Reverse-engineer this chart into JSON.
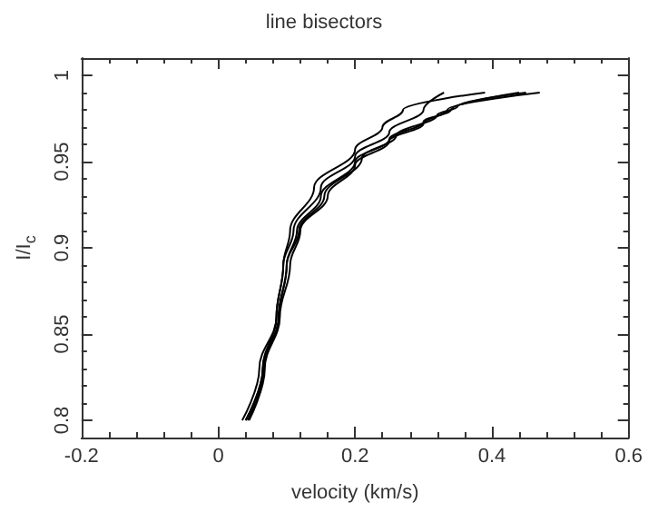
{
  "chart_data": {
    "type": "line",
    "title": "line bisectors",
    "xlabel": "velocity (km/s)",
    "ylabel": "I/I$_{c}$",
    "xlim": [
      -0.2,
      0.6
    ],
    "xticks": [
      -0.2,
      0,
      0.2,
      0.4,
      0.6
    ],
    "ylim": [
      0.79,
      1.01
    ],
    "yticks": [
      0.8,
      0.85,
      0.9,
      0.95,
      1
    ],
    "grid": false,
    "legend": false,
    "marker": "none",
    "line_style": "solid",
    "series": [
      {
        "color": "#000000",
        "x": [
          0.035,
          0.06,
          0.085,
          0.095,
          0.11,
          0.15,
          0.2,
          0.25,
          0.3,
          0.33
        ],
        "values": [
          0.8,
          0.83,
          0.86,
          0.89,
          0.91,
          0.935,
          0.953,
          0.967,
          0.98,
          0.99
        ]
      },
      {
        "color": "#000000",
        "x": [
          0.04,
          0.065,
          0.085,
          0.095,
          0.105,
          0.14,
          0.2,
          0.24,
          0.27,
          0.39
        ],
        "values": [
          0.8,
          0.83,
          0.86,
          0.89,
          0.91,
          0.935,
          0.957,
          0.97,
          0.98,
          0.99
        ]
      },
      {
        "color": "#000000",
        "x": [
          0.04,
          0.065,
          0.088,
          0.1,
          0.115,
          0.15,
          0.2,
          0.25,
          0.3,
          0.34,
          0.44
        ],
        "values": [
          0.8,
          0.83,
          0.86,
          0.89,
          0.91,
          0.93,
          0.95,
          0.963,
          0.973,
          0.98,
          0.99
        ]
      },
      {
        "color": "#000000",
        "x": [
          0.045,
          0.068,
          0.09,
          0.105,
          0.12,
          0.16,
          0.2,
          0.25,
          0.3,
          0.335,
          0.47
        ],
        "values": [
          0.8,
          0.83,
          0.86,
          0.89,
          0.91,
          0.93,
          0.948,
          0.962,
          0.972,
          0.98,
          0.99
        ]
      },
      {
        "color": "#000000",
        "x": [
          0.043,
          0.067,
          0.089,
          0.1,
          0.118,
          0.155,
          0.21,
          0.26,
          0.32,
          0.35,
          0.45
        ],
        "values": [
          0.8,
          0.83,
          0.86,
          0.89,
          0.91,
          0.93,
          0.952,
          0.965,
          0.977,
          0.982,
          0.99
        ]
      }
    ]
  }
}
